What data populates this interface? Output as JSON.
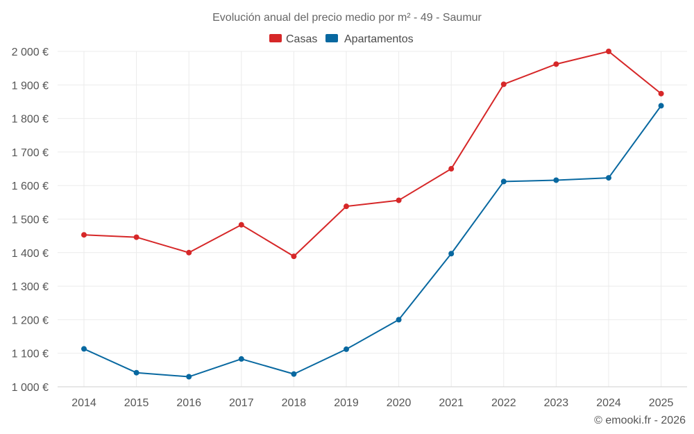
{
  "chart_data": {
    "type": "line",
    "title": "Evolución anual del precio medio por m² - 49 - Saumur",
    "categories": [
      "2014",
      "2015",
      "2016",
      "2017",
      "2018",
      "2019",
      "2020",
      "2021",
      "2022",
      "2023",
      "2024",
      "2025"
    ],
    "series": [
      {
        "name": "Casas",
        "color": "#d62728",
        "values": [
          1453,
          1446,
          1400,
          1483,
          1389,
          1538,
          1556,
          1650,
          1902,
          1962,
          2000,
          1874
        ]
      },
      {
        "name": "Apartamentos",
        "color": "#0868a0",
        "values": [
          1113,
          1042,
          1030,
          1083,
          1038,
          1112,
          1200,
          1397,
          1612,
          1616,
          1623,
          1838
        ]
      }
    ],
    "ylim": [
      1000,
      2000
    ],
    "yticks": [
      1000,
      1100,
      1200,
      1300,
      1400,
      1500,
      1600,
      1700,
      1800,
      1900,
      2000
    ],
    "ytick_labels": [
      "1 000 €",
      "1 100 €",
      "1 200 €",
      "1 300 €",
      "1 400 €",
      "1 500 €",
      "1 600 €",
      "1 700 €",
      "1 800 €",
      "1 900 €",
      "2 000 €"
    ],
    "grid": true,
    "legend_position": "top-center",
    "xlabel": "",
    "ylabel": ""
  },
  "credit": "© emooki.fr - 2026"
}
